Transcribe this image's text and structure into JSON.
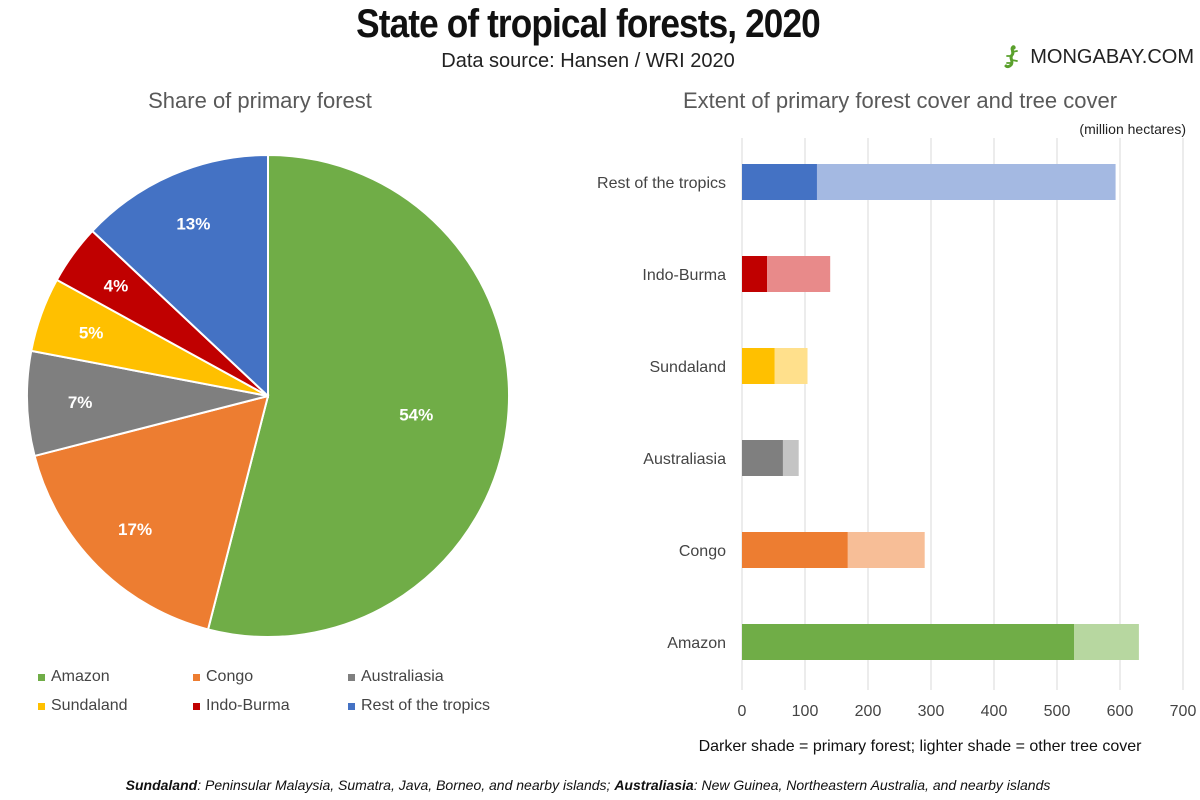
{
  "header": {
    "title": "State of tropical forests, 2020",
    "subtitle": "Data source: Hansen / WRI 2020",
    "brand": "MONGABAY.COM",
    "brand_icon": "gecko-icon"
  },
  "chart_data": [
    {
      "type": "pie",
      "title": "Share of primary forest",
      "slices": [
        {
          "label": "Amazon",
          "value": 54,
          "display": "54%",
          "color": "#70ad47"
        },
        {
          "label": "Congo",
          "value": 17,
          "display": "17%",
          "color": "#ed7d31"
        },
        {
          "label": "Australiasia",
          "value": 7,
          "display": "7%",
          "color": "#7f7f7f"
        },
        {
          "label": "Sundaland",
          "value": 5,
          "display": "5%",
          "color": "#ffc000"
        },
        {
          "label": "Indo-Burma",
          "value": 4,
          "display": "4%",
          "color": "#c00000"
        },
        {
          "label": "Rest of the tropics",
          "value": 13,
          "display": "13%",
          "color": "#4472c4"
        }
      ],
      "legend": [
        "Amazon",
        "Congo",
        "Australiasia",
        "Sundaland",
        "Indo-Burma",
        "Rest of the tropics"
      ]
    },
    {
      "type": "bar",
      "orientation": "horizontal",
      "stacked": true,
      "title": "Extent of primary forest cover and tree cover",
      "units": "(million hectares)",
      "categories": [
        "Rest of the tropics",
        "Indo-Burma",
        "Sundaland",
        "Australiasia",
        "Congo",
        "Amazon"
      ],
      "series": [
        {
          "values": [
            119,
            40,
            52,
            65,
            168,
            527
          ]
        },
        {
          "values": [
            474,
            100,
            52,
            25,
            122,
            103
          ]
        }
      ],
      "dark_colors": [
        "#4472c4",
        "#c00000",
        "#ffc000",
        "#7f7f7f",
        "#ed7d31",
        "#70ad47"
      ],
      "light_colors": [
        "#a4b9e2",
        "#e88a8a",
        "#ffe08c",
        "#c4c4c4",
        "#f7be97",
        "#b7d7a0"
      ],
      "xlim": [
        0,
        700
      ],
      "xticks": [
        "0",
        "100",
        "200",
        "300",
        "400",
        "500",
        "600",
        "700"
      ],
      "grid": true,
      "note": "Darker shade = primary forest; lighter shade = other tree cover"
    }
  ],
  "footnote": {
    "term1": "Sundaland",
    "def1": ": Peninsular Malaysia, Sumatra, Java, Borneo, and nearby islands; ",
    "term2": "Australiasia",
    "def2": ": New Guinea, Northeastern Australia, and nearby islands"
  }
}
